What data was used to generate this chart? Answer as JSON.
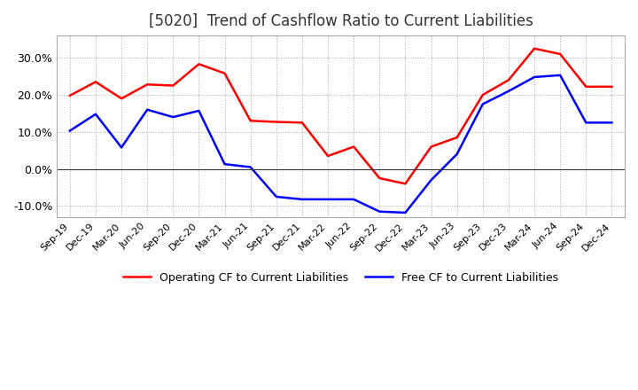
{
  "title": "[5020]  Trend of Cashflow Ratio to Current Liabilities",
  "title_fontsize": 12,
  "x_labels": [
    "Sep-19",
    "Dec-19",
    "Mar-20",
    "Jun-20",
    "Sep-20",
    "Dec-20",
    "Mar-21",
    "Jun-21",
    "Sep-21",
    "Dec-21",
    "Mar-22",
    "Jun-22",
    "Sep-22",
    "Dec-22",
    "Mar-23",
    "Jun-23",
    "Sep-23",
    "Dec-23",
    "Mar-24",
    "Jun-24",
    "Sep-24",
    "Dec-24"
  ],
  "operating_cf": [
    0.198,
    0.235,
    0.19,
    0.228,
    0.225,
    0.283,
    0.258,
    0.13,
    0.127,
    0.125,
    0.035,
    0.06,
    -0.025,
    -0.04,
    0.06,
    0.085,
    0.2,
    0.24,
    0.325,
    0.31,
    0.222,
    0.222
  ],
  "free_cf": [
    0.103,
    0.148,
    0.058,
    0.16,
    0.14,
    0.157,
    0.013,
    0.005,
    -0.075,
    -0.082,
    -0.082,
    -0.082,
    -0.115,
    -0.118,
    -0.03,
    0.04,
    0.175,
    0.21,
    0.248,
    0.253,
    0.125,
    0.125
  ],
  "ylim": [
    -0.13,
    0.36
  ],
  "yticks": [
    -0.1,
    0.0,
    0.1,
    0.2,
    0.3
  ],
  "operating_color": "#ff0000",
  "free_color": "#0000ff",
  "grid_color": "#aaaaaa",
  "background_color": "#ffffff",
  "legend_operating": "Operating CF to Current Liabilities",
  "legend_free": "Free CF to Current Liabilities"
}
